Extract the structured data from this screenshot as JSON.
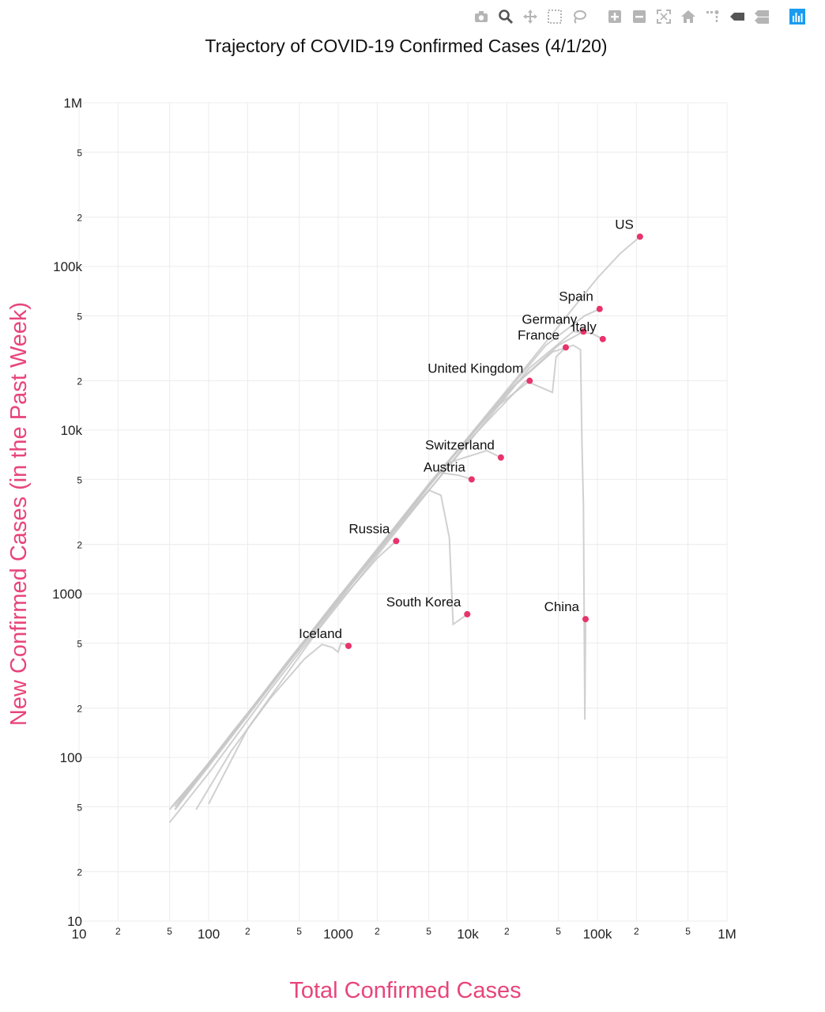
{
  "modebar": {
    "buttons": [
      {
        "name": "download-plot-icon",
        "icon": "camera"
      },
      {
        "name": "zoom-icon",
        "icon": "magnifier",
        "active": true
      },
      {
        "name": "pan-icon",
        "icon": "move"
      },
      {
        "name": "box-select-icon",
        "icon": "dashed-box"
      },
      {
        "name": "lasso-select-icon",
        "icon": "lasso"
      },
      {
        "name": "zoom-in-icon",
        "icon": "plus-box"
      },
      {
        "name": "zoom-out-icon",
        "icon": "minus-box"
      },
      {
        "name": "autoscale-icon",
        "icon": "corners"
      },
      {
        "name": "reset-axes-icon",
        "icon": "house"
      },
      {
        "name": "spike-lines-icon",
        "icon": "spikes"
      },
      {
        "name": "hover-closest-icon",
        "icon": "tag"
      },
      {
        "name": "hover-compare-icon",
        "icon": "double-tag"
      },
      {
        "name": "plotly-logo-icon",
        "icon": "bars",
        "color": "#1a9bf0"
      }
    ]
  },
  "chart_data": {
    "type": "line",
    "title": "Trajectory of COVID-19 Confirmed Cases (4/1/20)",
    "xlabel": "Total Confirmed Cases",
    "ylabel": "New Confirmed Cases (in the Past Week)",
    "x_scale": "log",
    "y_scale": "log",
    "xlim": [
      10,
      1000000
    ],
    "ylim": [
      10,
      1000000
    ],
    "x_major_ticks": [
      {
        "value": 10,
        "label": "10"
      },
      {
        "value": 100,
        "label": "100"
      },
      {
        "value": 1000,
        "label": "1000"
      },
      {
        "value": 10000,
        "label": "10k"
      },
      {
        "value": 100000,
        "label": "100k"
      },
      {
        "value": 1000000,
        "label": "1M"
      }
    ],
    "x_minor_ticks": [
      {
        "value": 20,
        "label": "2"
      },
      {
        "value": 50,
        "label": "5"
      },
      {
        "value": 200,
        "label": "2"
      },
      {
        "value": 500,
        "label": "5"
      },
      {
        "value": 2000,
        "label": "2"
      },
      {
        "value": 5000,
        "label": "5"
      },
      {
        "value": 20000,
        "label": "2"
      },
      {
        "value": 50000,
        "label": "5"
      },
      {
        "value": 200000,
        "label": "2"
      },
      {
        "value": 500000,
        "label": "5"
      }
    ],
    "y_major_ticks": [
      {
        "value": 10,
        "label": "10"
      },
      {
        "value": 100,
        "label": "100"
      },
      {
        "value": 1000,
        "label": "1000"
      },
      {
        "value": 10000,
        "label": "10k"
      },
      {
        "value": 100000,
        "label": "100k"
      },
      {
        "value": 1000000,
        "label": "1M"
      }
    ],
    "y_minor_ticks": [
      {
        "value": 20,
        "label": "2"
      },
      {
        "value": 50,
        "label": "5"
      },
      {
        "value": 200,
        "label": "2"
      },
      {
        "value": 500,
        "label": "5"
      },
      {
        "value": 2000,
        "label": "2"
      },
      {
        "value": 5000,
        "label": "5"
      },
      {
        "value": 20000,
        "label": "2"
      },
      {
        "value": 50000,
        "label": "5"
      },
      {
        "value": 200000,
        "label": "2"
      },
      {
        "value": 500000,
        "label": "5"
      }
    ],
    "grid": true,
    "line_color": "#c8c8c8",
    "marker_color": "#e8336b",
    "series": [
      {
        "name": "US",
        "label_pos": "above",
        "points": [
          [
            50,
            48
          ],
          [
            100,
            90
          ],
          [
            300,
            280
          ],
          [
            1000,
            950
          ],
          [
            3000,
            2800
          ],
          [
            10000,
            9000
          ],
          [
            30000,
            26000
          ],
          [
            100000,
            85000
          ],
          [
            150000,
            120000
          ],
          [
            213000,
            152000
          ]
        ]
      },
      {
        "name": "Spain",
        "label_pos": "above",
        "points": [
          [
            52,
            50
          ],
          [
            110,
            100
          ],
          [
            400,
            380
          ],
          [
            1500,
            1400
          ],
          [
            5000,
            4700
          ],
          [
            15000,
            13000
          ],
          [
            40000,
            33000
          ],
          [
            80000,
            50000
          ],
          [
            104000,
            55000
          ]
        ]
      },
      {
        "name": "Italy",
        "label_pos": "above",
        "points": [
          [
            62,
            55
          ],
          [
            150,
            140
          ],
          [
            650,
            600
          ],
          [
            2500,
            2200
          ],
          [
            9000,
            7500
          ],
          [
            30000,
            24000
          ],
          [
            65000,
            40000
          ],
          [
            90000,
            39000
          ],
          [
            110000,
            36000
          ]
        ]
      },
      {
        "name": "Germany",
        "label_pos": "above",
        "points": [
          [
            55,
            48
          ],
          [
            130,
            115
          ],
          [
            500,
            460
          ],
          [
            2000,
            1850
          ],
          [
            7000,
            6300
          ],
          [
            24000,
            19500
          ],
          [
            50000,
            33000
          ],
          [
            78000,
            40000
          ]
        ]
      },
      {
        "name": "France",
        "label_pos": "above",
        "points": [
          [
            100,
            52
          ],
          [
            200,
            150
          ],
          [
            700,
            600
          ],
          [
            2800,
            2400
          ],
          [
            10000,
            8500
          ],
          [
            28000,
            20000
          ],
          [
            45000,
            17000
          ],
          [
            48000,
            28000
          ],
          [
            57000,
            32000
          ]
        ]
      },
      {
        "name": "United Kingdom",
        "label_pos": "above",
        "points": [
          [
            55,
            52
          ],
          [
            120,
            110
          ],
          [
            450,
            420
          ],
          [
            1800,
            1650
          ],
          [
            6000,
            5500
          ],
          [
            15000,
            13000
          ],
          [
            30000,
            20000
          ]
        ]
      },
      {
        "name": "Switzerland",
        "label_pos": "above",
        "points": [
          [
            58,
            52
          ],
          [
            130,
            120
          ],
          [
            520,
            480
          ],
          [
            2200,
            2000
          ],
          [
            7000,
            6300
          ],
          [
            14000,
            7500
          ],
          [
            18000,
            6800
          ]
        ]
      },
      {
        "name": "Austria",
        "label_pos": "above",
        "points": [
          [
            55,
            50
          ],
          [
            120,
            110
          ],
          [
            500,
            460
          ],
          [
            2000,
            1850
          ],
          [
            6000,
            5500
          ],
          [
            8500,
            5300
          ],
          [
            10700,
            5000
          ]
        ]
      },
      {
        "name": "Russia",
        "label_pos": "above",
        "points": [
          [
            50,
            40
          ],
          [
            100,
            80
          ],
          [
            300,
            260
          ],
          [
            1000,
            880
          ],
          [
            2000,
            1650
          ],
          [
            2800,
            2100
          ]
        ]
      },
      {
        "name": "South Korea",
        "label_pos": "above",
        "points": [
          [
            60,
            55
          ],
          [
            150,
            140
          ],
          [
            600,
            560
          ],
          [
            2500,
            2300
          ],
          [
            5000,
            4300
          ],
          [
            6200,
            4000
          ],
          [
            7200,
            2200
          ],
          [
            7700,
            650
          ],
          [
            8800,
            700
          ],
          [
            9900,
            750
          ]
        ]
      },
      {
        "name": "Iceland",
        "label_pos": "above",
        "points": [
          [
            80,
            48
          ],
          [
            150,
            110
          ],
          [
            300,
            230
          ],
          [
            550,
            400
          ],
          [
            750,
            490
          ],
          [
            900,
            470
          ],
          [
            1000,
            440
          ],
          [
            1050,
            500
          ],
          [
            1200,
            480
          ]
        ]
      },
      {
        "name": "China",
        "label_pos": "above",
        "points": [
          [
            55,
            48
          ],
          [
            150,
            140
          ],
          [
            550,
            500
          ],
          [
            2000,
            1800
          ],
          [
            6000,
            5500
          ],
          [
            20000,
            17000
          ],
          [
            45000,
            30000
          ],
          [
            65000,
            33000
          ],
          [
            74000,
            31000
          ],
          [
            76000,
            8000
          ],
          [
            78000,
            3500
          ],
          [
            80000,
            170
          ],
          [
            81000,
            700
          ]
        ]
      }
    ]
  }
}
